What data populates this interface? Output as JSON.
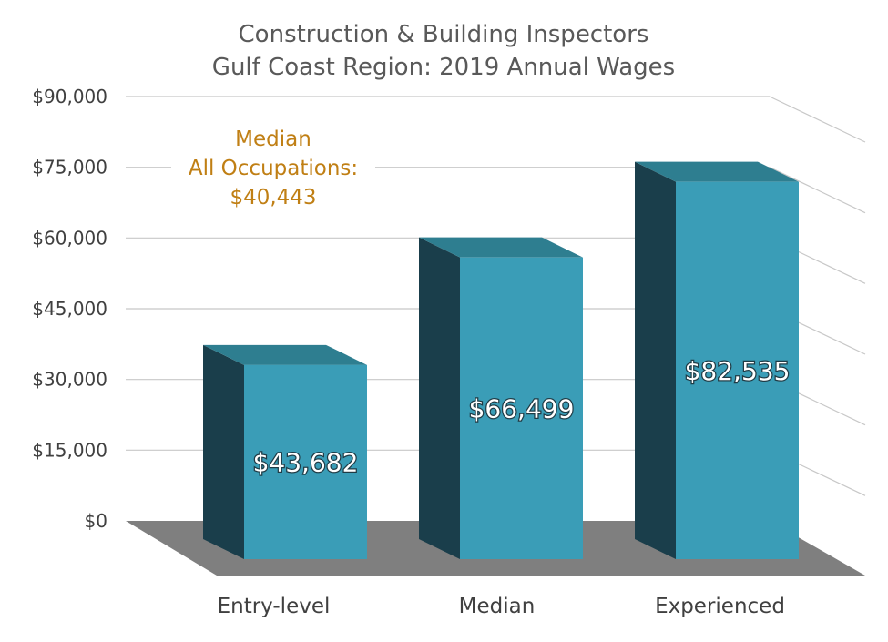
{
  "chart_data": {
    "type": "bar",
    "title": [
      "Construction & Building Inspectors",
      "Gulf Coast Region: 2019 Annual Wages"
    ],
    "categories": [
      "Entry-level",
      "Median",
      "Experienced"
    ],
    "values": [
      43682,
      66499,
      82535
    ],
    "value_labels": [
      "$43,682",
      "$66,499",
      "$82,535"
    ],
    "ylim": [
      0,
      90000
    ],
    "yticks": [
      0,
      15000,
      30000,
      45000,
      60000,
      75000,
      90000
    ],
    "ytick_labels": [
      "$0",
      "$15,000",
      "$30,000",
      "$45,000",
      "$60,000",
      "$75,000",
      "$90,000"
    ],
    "grid": true,
    "annotation": {
      "lines": [
        "Median",
        "All Occupations:",
        "$40,443"
      ],
      "value": 40443
    },
    "colors": {
      "bar_front": "#3a9db7",
      "bar_side": "#1a3e4b",
      "bar_top": "#2e7e90",
      "floor": "#7f7f7f",
      "grid": "#c8c8c8",
      "annotation": "#c07f14"
    }
  }
}
